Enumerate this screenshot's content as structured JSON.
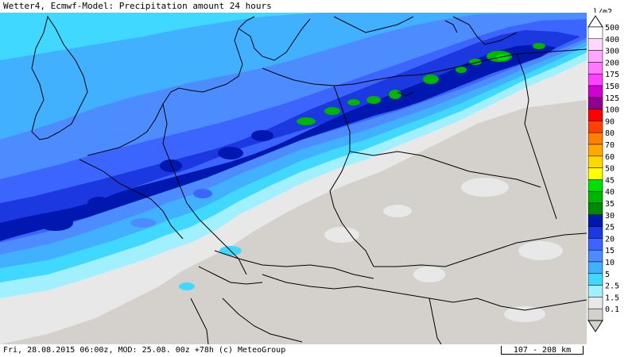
{
  "title": "Wetter4, Ecmwf-Model: Precipitation amount 24 hours",
  "footer": {
    "text": "Fri, 28.08.2015 06:00z, MOD: 25.08. 00z +78h (c) MeteoGroup",
    "scale": "107 - 208 km"
  },
  "legend": {
    "unit": "l/m2",
    "items": [
      {
        "label": "500",
        "color": "#ffffff"
      },
      {
        "label": "400",
        "color": "#ffd8ff"
      },
      {
        "label": "300",
        "color": "#ffa8ff"
      },
      {
        "label": "200",
        "color": "#ff78ff"
      },
      {
        "label": "175",
        "color": "#ff40ff"
      },
      {
        "label": "150",
        "color": "#d000d0"
      },
      {
        "label": "125",
        "color": "#900090"
      },
      {
        "label": "100",
        "color": "#ff0000"
      },
      {
        "label": "90",
        "color": "#ff4000"
      },
      {
        "label": "80",
        "color": "#ff8000"
      },
      {
        "label": "70",
        "color": "#ffa800"
      },
      {
        "label": "60",
        "color": "#ffd800"
      },
      {
        "label": "50",
        "color": "#ffff00"
      },
      {
        "label": "45",
        "color": "#00e000"
      },
      {
        "label": "40",
        "color": "#00b400"
      },
      {
        "label": "35",
        "color": "#008800"
      },
      {
        "label": "30",
        "color": "#0018b0"
      },
      {
        "label": "25",
        "color": "#1c38e0"
      },
      {
        "label": "20",
        "color": "#3c64ff"
      },
      {
        "label": "15",
        "color": "#4c8cff"
      },
      {
        "label": "10",
        "color": "#40b0ff"
      },
      {
        "label": "5",
        "color": "#40d8ff"
      },
      {
        "label": "2.5",
        "color": "#a0f0ff"
      },
      {
        "label": "1.5",
        "color": "#e8e8e8"
      },
      {
        "label": "0.1",
        "color": "#d4d0cc"
      }
    ]
  }
}
